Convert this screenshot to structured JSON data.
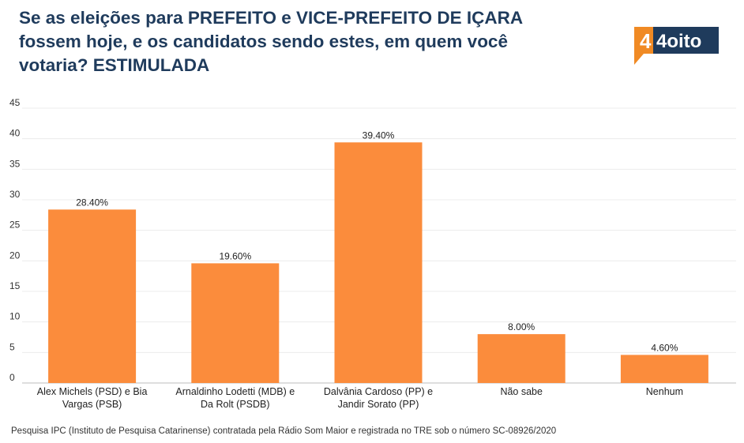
{
  "title": "Se as eleições para PREFEITO e VICE-PREFEITO DE IÇARA fossem hoje, e os candidatos sendo estes, em quem você votaria? ESTIMULADA",
  "logo": {
    "icon": "4oito-logo",
    "text": "4oito",
    "brand_dark": "#1f3b5c",
    "brand_orange": "#f08a24"
  },
  "footer": "Pesquisa IPC (Instituto de Pesquisa Catarinense) contratada pela Rádio Som Maior e registrada no TRE sob o número SC-08926/2020",
  "chart_data": {
    "type": "bar",
    "categories": [
      [
        "Alex Michels (PSD) e Bia",
        "Vargas (PSB)"
      ],
      [
        "Arnaldinho Lodetti (MDB) e",
        "Da Rolt (PSDB)"
      ],
      [
        "Dalvânia Cardoso (PP) e",
        "Jandir Sorato (PP)"
      ],
      [
        "Não sabe"
      ],
      [
        "Nenhum"
      ]
    ],
    "values": [
      28.4,
      19.6,
      39.4,
      8.0,
      4.6
    ],
    "data_labels": [
      "28.40%",
      "19.60%",
      "39.40%",
      "8.00%",
      "4.60%"
    ],
    "ylim": [
      0,
      45
    ],
    "yticks": [
      0,
      5,
      10,
      15,
      20,
      25,
      30,
      35,
      40,
      45
    ],
    "grid": true,
    "bar_color": "#fb8c3c",
    "xlabel": "",
    "ylabel": ""
  }
}
